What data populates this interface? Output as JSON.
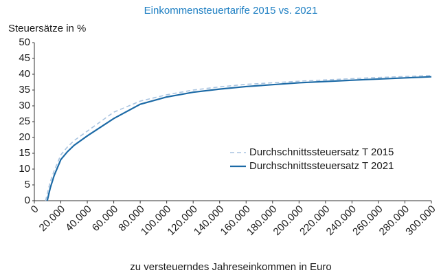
{
  "chart_data": {
    "type": "line",
    "title": "Einkommensteuertarife 2015 vs. 2021",
    "y_label": "Steuersätze in %",
    "x_label": "zu versteuerndes Jahreseinkommen in Euro",
    "xlim": [
      0,
      300000
    ],
    "xticks": [
      0,
      {
        "value": 20000,
        "label": "20.000"
      },
      {
        "value": 40000,
        "label": "40.000"
      },
      {
        "value": 60000,
        "label": "60.000"
      },
      {
        "value": 80000,
        "label": "80.000"
      },
      {
        "value": 100000,
        "label": "100.000"
      },
      {
        "value": 120000,
        "label": "120.000"
      },
      {
        "value": 140000,
        "label": "140.000"
      },
      {
        "value": 160000,
        "label": "160.000"
      },
      {
        "value": 180000,
        "label": "180.000"
      },
      {
        "value": 200000,
        "label": "200.000"
      },
      {
        "value": 220000,
        "label": "220.000"
      },
      {
        "value": 240000,
        "label": "240.000"
      },
      {
        "value": 260000,
        "label": "260.000"
      },
      {
        "value": 280000,
        "label": "280.000"
      },
      {
        "value": 300000,
        "label": "300.000"
      }
    ],
    "ylim": [
      0,
      50
    ],
    "yticks": [
      0,
      5,
      10,
      15,
      20,
      25,
      30,
      35,
      40,
      45,
      50
    ],
    "grid": false,
    "legend": "center right",
    "series": [
      {
        "name": "Durchschnittssteuersatz T 2015",
        "color": "#a9c4e0",
        "linestyle": "dashed",
        "x": [
          8472,
          12000,
          15000,
          20000,
          25000,
          30000,
          40000,
          60000,
          80000,
          100000,
          120000,
          140000,
          160000,
          200000,
          250000,
          300000
        ],
        "values": [
          0,
          6,
          9.5,
          14.5,
          17,
          19,
          22,
          28,
          31.5,
          33.5,
          35,
          36,
          36.8,
          37.8,
          38.8,
          39.6
        ]
      },
      {
        "name": "Durchschnittssteuersatz T 2021",
        "color": "#1c6aa6",
        "linestyle": "solid",
        "x": [
          9744,
          12000,
          15000,
          20000,
          25000,
          30000,
          40000,
          60000,
          80000,
          100000,
          120000,
          140000,
          160000,
          200000,
          250000,
          300000
        ],
        "values": [
          0,
          4,
          8,
          13,
          15.5,
          17.5,
          20.5,
          26,
          30.5,
          32.8,
          34.3,
          35.3,
          36.1,
          37.3,
          38.3,
          39.2
        ]
      }
    ]
  }
}
